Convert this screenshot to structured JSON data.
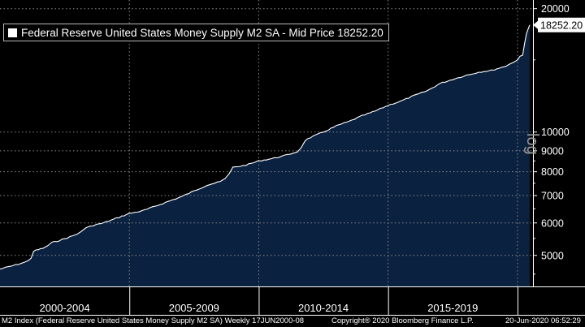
{
  "chart_data": {
    "type": "area",
    "title": "",
    "scale": "log",
    "ylabel": "",
    "axis_scale_label": "log",
    "ylim": [
      4200,
      21000
    ],
    "xlim": [
      2000.0,
      2020.6
    ],
    "y_ticks": [
      5000,
      6000,
      7000,
      8000,
      9000,
      10000,
      20000
    ],
    "y_tick_labels": [
      "5000",
      "6000",
      "7000",
      "8000",
      "9000",
      "10000",
      "20000"
    ],
    "x_tick_positions": [
      2000.0,
      2005.0,
      2010.0,
      2015.0,
      2020.0
    ],
    "x_period_labels": [
      {
        "label": "2000-2004",
        "start": 2000.0,
        "end": 2005.0
      },
      {
        "label": "2005-2009",
        "start": 2005.0,
        "end": 2010.0
      },
      {
        "label": "2010-2014",
        "start": 2010.0,
        "end": 2015.0
      },
      {
        "label": "2015-2019",
        "start": 2015.0,
        "end": 2020.0
      }
    ],
    "series": [
      {
        "name": "Federal Reserve United States Money Supply M2 SA - Mid Price",
        "legend_label": "Federal Reserve United States Money Supply M2 SA - Mid Price 18252.20",
        "last_value": 18252.2,
        "last_value_label": "18252.20",
        "x": [
          2000.0,
          2000.5,
          2001.0,
          2001.2,
          2001.3,
          2001.75,
          2002.0,
          2002.5,
          2003.0,
          2003.15,
          2003.4,
          2003.6,
          2004.0,
          2004.5,
          2005.0,
          2005.5,
          2006.0,
          2006.5,
          2007.0,
          2007.5,
          2008.0,
          2008.5,
          2008.7,
          2008.85,
          2009.0,
          2009.5,
          2010.0,
          2010.5,
          2011.0,
          2011.5,
          2011.65,
          2011.8,
          2012.0,
          2012.5,
          2013.0,
          2013.5,
          2014.0,
          2014.5,
          2015.0,
          2015.5,
          2016.0,
          2016.5,
          2017.0,
          2017.5,
          2018.0,
          2018.5,
          2019.0,
          2019.5,
          2019.85,
          2020.0,
          2020.1,
          2020.2,
          2020.28,
          2020.35,
          2020.42,
          2020.47
        ],
        "values": [
          4630,
          4720,
          4820,
          4920,
          5120,
          5230,
          5370,
          5490,
          5640,
          5730,
          5870,
          5920,
          6000,
          6160,
          6330,
          6420,
          6590,
          6770,
          6950,
          7180,
          7420,
          7560,
          7700,
          7900,
          8200,
          8300,
          8500,
          8610,
          8760,
          8950,
          9180,
          9550,
          9700,
          10000,
          10350,
          10620,
          10960,
          11250,
          11620,
          11900,
          12270,
          12600,
          13130,
          13450,
          13740,
          14000,
          14140,
          14450,
          14800,
          15000,
          15320,
          15400,
          16500,
          17400,
          17900,
          18252.2
        ]
      }
    ]
  },
  "colors": {
    "background": "#000000",
    "area_fill": "#0b2140",
    "line": "#ffffff",
    "grid": "#8a8a8a",
    "text": "#ffffff",
    "log_label": "#9a9a9a"
  },
  "footer": {
    "left": "M2 Index (Federal Reserve United States Money Supply M2 SA)  Weekly 17JUN2000-08",
    "center": "Copyright® 2020 Bloomberg Finance L.P.",
    "right": "20-Jun-2020 06:52:29"
  }
}
